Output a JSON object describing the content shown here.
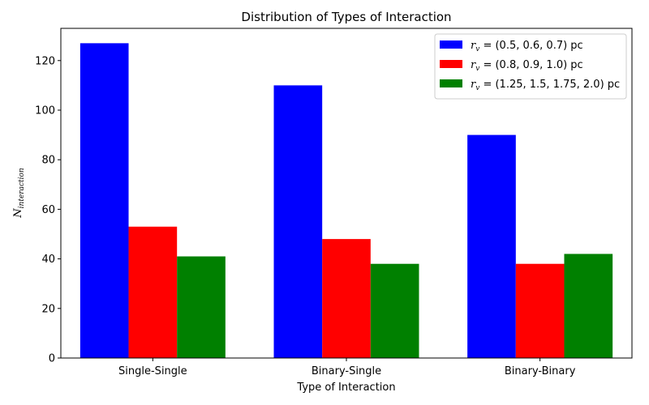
{
  "chart_data": {
    "type": "bar",
    "title": "Distribution of Types of Interaction",
    "xlabel": "Type of Interaction",
    "ylabel": "N",
    "ylabel_subscript": "interaction",
    "categories": [
      "Single-Single",
      "Binary-Single",
      "Binary-Binary"
    ],
    "series": [
      {
        "name": "r_v = (0.5, 0.6, 0.7) pc",
        "label_value": "= (0.5, 0.6, 0.7) pc",
        "color": "#0000ff",
        "values": [
          127,
          110,
          90
        ]
      },
      {
        "name": "r_v = (0.8, 0.9, 1.0) pc",
        "label_value": "= (0.8, 0.9, 1.0) pc",
        "color": "#ff0000",
        "values": [
          53,
          48,
          38
        ]
      },
      {
        "name": "r_v = (1.25, 1.5, 1.75, 2.0) pc",
        "label_value": "= (1.25, 1.5, 1.75, 2.0) pc",
        "color": "#008000",
        "values": [
          41,
          38,
          42
        ]
      }
    ],
    "legend_symbol": "r",
    "legend_symbol_subscript": "v",
    "ylim": [
      0,
      133
    ],
    "yticks": [
      0,
      20,
      40,
      60,
      80,
      100,
      120
    ],
    "grid": false,
    "legend_position": "upper right"
  }
}
